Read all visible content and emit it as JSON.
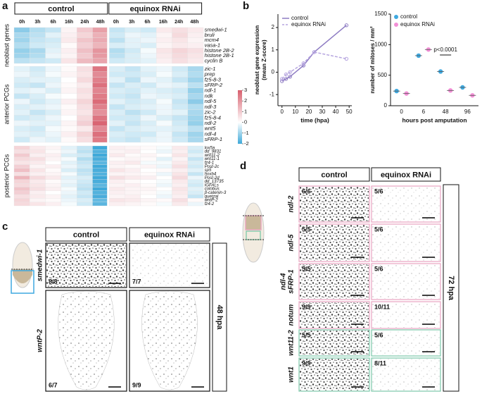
{
  "chart_data": [
    {
      "panel": "a",
      "type": "heatmap",
      "column_headers": [
        "control",
        "equinox RNAi"
      ],
      "timepoints": [
        "0h",
        "3h",
        "6h",
        "16h",
        "24h",
        "48h"
      ],
      "groups": [
        {
          "name": "neoblast genes",
          "color": "#9b8fd6",
          "rows": [
            "smedwi-1",
            "bruli",
            "mcm4",
            "vasa-1",
            "histone 2B-2",
            "histone 2B-1",
            "cyclin B"
          ],
          "values": [
            [
              -1.2,
              -0.8,
              -0.6,
              0.2,
              1.0,
              1.8,
              -0.6,
              -0.4,
              -0.5,
              0.4,
              0.6,
              0.4
            ],
            [
              -0.9,
              -0.7,
              -0.3,
              0.3,
              0.8,
              1.5,
              -0.5,
              -0.2,
              -0.3,
              0.2,
              0.7,
              0.3
            ],
            [
              -1.0,
              -0.6,
              -0.5,
              0.4,
              1.1,
              1.6,
              -0.7,
              -0.3,
              -0.2,
              0.3,
              0.5,
              0.2
            ],
            [
              -0.8,
              -0.5,
              -0.4,
              0.1,
              0.9,
              1.4,
              -0.4,
              -0.3,
              -0.4,
              0.2,
              0.4,
              0.3
            ],
            [
              -1.1,
              -0.9,
              -0.3,
              0.3,
              1.2,
              2.0,
              -0.8,
              -0.5,
              -0.1,
              0.5,
              0.8,
              0.6
            ],
            [
              -1.0,
              -0.8,
              -0.2,
              0.2,
              1.0,
              1.9,
              -0.7,
              -0.4,
              -0.2,
              0.4,
              0.7,
              0.5
            ],
            [
              -0.7,
              -0.6,
              -0.5,
              0.5,
              1.3,
              1.7,
              -0.5,
              -0.4,
              -0.3,
              0.3,
              0.6,
              0.4
            ]
          ]
        },
        {
          "name": "anterior PCGs",
          "color": "#e9a3b6",
          "rows": [
            "zic-1",
            "prep",
            "fz5-8-3",
            "sFRP-2",
            "ndl-1",
            "ndk",
            "ndl-5",
            "ndl-3",
            "zic-2",
            "fz5-8-4",
            "ndl-2",
            "wnt5",
            "ndl-4",
            "sFRP-1"
          ],
          "values": [
            [
              -0.3,
              -0.5,
              -0.2,
              0.1,
              0.6,
              2.6,
              -0.4,
              -0.6,
              -0.3,
              -0.2,
              -0.5,
              -0.9
            ],
            [
              -0.2,
              -0.4,
              -0.1,
              0.2,
              0.5,
              2.2,
              -0.5,
              -0.5,
              -0.4,
              -0.1,
              -0.4,
              -0.8
            ],
            [
              -0.4,
              -0.3,
              -0.3,
              0.0,
              0.7,
              2.4,
              -0.3,
              -0.7,
              -0.2,
              -0.3,
              -0.6,
              -1.0
            ],
            [
              -0.5,
              -0.6,
              -0.2,
              0.1,
              0.4,
              2.7,
              -0.6,
              -0.4,
              -0.5,
              -0.2,
              -0.3,
              -0.7
            ],
            [
              -0.3,
              -0.2,
              -0.4,
              0.2,
              0.6,
              2.3,
              -0.4,
              -0.5,
              -0.3,
              -0.4,
              -0.5,
              -1.1
            ],
            [
              -0.6,
              -0.4,
              -0.1,
              0.0,
              0.5,
              2.5,
              -0.5,
              -0.6,
              -0.2,
              -0.3,
              -0.4,
              -0.9
            ],
            [
              -0.2,
              -0.5,
              -0.3,
              0.3,
              0.8,
              2.8,
              -0.3,
              -0.5,
              -0.4,
              -0.1,
              -0.6,
              -1.2
            ],
            [
              -0.4,
              -0.3,
              -0.2,
              0.1,
              0.6,
              2.4,
              -0.6,
              -0.4,
              -0.3,
              -0.2,
              -0.5,
              -0.8
            ],
            [
              -0.3,
              -0.6,
              -0.4,
              0.2,
              0.5,
              2.1,
              -0.4,
              -0.7,
              -0.5,
              -0.2,
              -0.3,
              -0.9
            ],
            [
              -0.5,
              -0.4,
              -0.2,
              0.0,
              0.7,
              2.6,
              -0.5,
              -0.5,
              -0.2,
              -0.4,
              -0.6,
              -1.0
            ],
            [
              -0.2,
              -0.3,
              -0.3,
              0.2,
              0.9,
              2.9,
              -0.3,
              -0.6,
              -0.4,
              -0.1,
              -0.5,
              -1.1
            ],
            [
              -0.4,
              -0.5,
              -0.1,
              0.1,
              0.4,
              2.2,
              -0.6,
              -0.4,
              -0.3,
              -0.3,
              -0.4,
              -0.7
            ],
            [
              -0.3,
              -0.4,
              -0.2,
              0.3,
              0.8,
              2.7,
              -0.4,
              -0.5,
              -0.5,
              -0.2,
              -0.6,
              -1.0
            ],
            [
              -0.5,
              -0.2,
              -0.3,
              0.1,
              0.6,
              2.5,
              -0.5,
              -0.6,
              -0.3,
              -0.2,
              -0.5,
              -0.9
            ]
          ]
        },
        {
          "name": "posterior PCGs",
          "color": "#7cc9a9",
          "rows": [
            "lox5a",
            "dd_9831",
            "wnt11-2",
            "wnt11-1",
            "fz4-1",
            "Post-2c",
            "sp5",
            "hoxb4",
            "Post-2d",
            "dd_13735",
            "IGFALs",
            "colobus",
            "β-catenin-3",
            "quetzal",
            "wntP-2",
            "fz4-2"
          ],
          "values": [
            [
              0.8,
              0.4,
              0.2,
              -0.3,
              -0.6,
              -2.0,
              0.3,
              0.2,
              0.1,
              -0.1,
              0.4,
              -0.4
            ],
            [
              0.6,
              0.5,
              0.1,
              -0.2,
              -0.7,
              -1.8,
              0.2,
              0.3,
              0.0,
              -0.2,
              0.3,
              -0.5
            ],
            [
              1.0,
              0.3,
              0.3,
              -0.4,
              -0.5,
              -2.1,
              0.4,
              0.1,
              0.2,
              0.0,
              0.5,
              -0.3
            ],
            [
              0.7,
              0.6,
              0.2,
              -0.1,
              -0.8,
              -1.9,
              0.1,
              0.2,
              0.1,
              -0.3,
              0.2,
              -0.6
            ],
            [
              0.5,
              0.4,
              0.0,
              -0.3,
              -0.6,
              -1.7,
              0.3,
              0.4,
              -0.1,
              -0.1,
              0.4,
              -0.4
            ],
            [
              0.9,
              0.2,
              0.3,
              -0.2,
              -0.5,
              -2.0,
              0.2,
              0.1,
              0.2,
              -0.2,
              0.6,
              -0.5
            ],
            [
              1.2,
              0.5,
              0.1,
              -0.4,
              -0.7,
              -1.9,
              0.5,
              0.3,
              0.0,
              0.1,
              0.3,
              -0.3
            ],
            [
              0.6,
              0.3,
              0.2,
              -0.1,
              -0.6,
              -1.8,
              0.2,
              0.2,
              0.1,
              -0.2,
              0.5,
              -0.6
            ],
            [
              1.4,
              0.7,
              0.4,
              -0.3,
              -0.4,
              -2.0,
              0.6,
              0.4,
              0.3,
              0.0,
              0.7,
              -0.2
            ],
            [
              0.8,
              0.4,
              0.1,
              -0.2,
              -0.5,
              -1.9,
              0.3,
              0.1,
              0.0,
              -0.1,
              0.4,
              -0.4
            ],
            [
              0.7,
              0.5,
              0.2,
              -0.3,
              -0.6,
              -1.7,
              0.2,
              0.3,
              0.1,
              -0.2,
              0.3,
              -0.5
            ],
            [
              1.1,
              0.6,
              0.3,
              -0.1,
              -0.7,
              -2.0,
              0.4,
              0.2,
              0.2,
              0.0,
              0.5,
              -0.3
            ],
            [
              0.9,
              0.3,
              0.0,
              -0.2,
              -0.5,
              -1.8,
              0.3,
              0.2,
              0.1,
              -0.1,
              0.4,
              -0.4
            ],
            [
              0.6,
              0.4,
              0.2,
              -0.3,
              -0.6,
              -1.9,
              0.2,
              0.3,
              0.0,
              -0.2,
              0.3,
              -0.6
            ],
            [
              0.8,
              0.2,
              0.1,
              -0.2,
              -0.4,
              -1.6,
              0.5,
              0.4,
              0.2,
              0.1,
              0.6,
              0.1
            ],
            [
              0.7,
              0.5,
              0.3,
              -0.1,
              -0.5,
              -1.7,
              0.3,
              0.2,
              0.1,
              -0.1,
              0.4,
              -0.2
            ]
          ]
        }
      ],
      "colorbar": {
        "lim": [
          -2,
          3
        ],
        "ticks": [
          3,
          2,
          1,
          0,
          -1,
          -2
        ],
        "colors": [
          "#3fa9d9",
          "#ffffff",
          "#d8606e"
        ]
      }
    },
    {
      "panel": "b",
      "type": "line",
      "x": [
        0,
        3,
        6,
        16,
        24,
        48
      ],
      "series": [
        {
          "name": "control",
          "color": "#8e7cc3",
          "dash": false,
          "values": [
            -0.4,
            -0.3,
            -0.2,
            0.3,
            0.9,
            2.1
          ]
        },
        {
          "name": "equinox RNAi",
          "color": "#b7a6e0",
          "dash": true,
          "values": [
            -0.3,
            -0.1,
            0.0,
            0.4,
            0.9,
            0.6
          ]
        }
      ],
      "xlabel": "time (hpa)",
      "ylabel": [
        "neoblast gene expression",
        "(mean Z-score)"
      ],
      "xlim": [
        -3,
        52
      ],
      "xticks": [
        0,
        10,
        20,
        30,
        40,
        50
      ],
      "ylim": [
        -1.5,
        2.6
      ],
      "yticks": [
        -1,
        0,
        1,
        2
      ],
      "legend": "upper-left"
    },
    {
      "type": "dot",
      "categories": [
        "0",
        "6",
        "48",
        "96"
      ],
      "series": [
        {
          "name": "control",
          "color": "#3fa9e0",
          "values": [
            240,
            820,
            560,
            300
          ]
        },
        {
          "name": "equinox RNAi",
          "color": "#f28fd6",
          "values": [
            200,
            920,
            250,
            170
          ]
        }
      ],
      "xlabel": "hours post amputation",
      "ylabel": "number of mitoses / mm²",
      "ylim": [
        0,
        1500
      ],
      "yticks": [
        0,
        500,
        1000,
        1500
      ],
      "annotation": "p<0.0001",
      "legend": "upper-left"
    }
  ],
  "panel_c": {
    "label": "c",
    "column_headers": [
      "control",
      "equinox RNAi"
    ],
    "stage": "48 hpa",
    "rows": [
      {
        "gene": [
          "smedwi-1"
        ],
        "counts": [
          "8/8",
          "7/7"
        ]
      },
      {
        "gene": [
          "wntP-2"
        ],
        "counts": [
          "6/7",
          "9/9"
        ]
      }
    ]
  },
  "panel_d": {
    "label": "d",
    "column_headers": [
      "control",
      "equinox RNAi"
    ],
    "stage": "72 hpa",
    "rows": [
      {
        "gene": [
          "ndl-2"
        ],
        "counts": [
          "6/6",
          "5/6"
        ],
        "color": "#e9a3c0"
      },
      {
        "gene": [
          "ndl-5"
        ],
        "counts": [
          "5/5",
          "5/6"
        ],
        "color": "#e9a3c0"
      },
      {
        "gene": [
          "ndl-4",
          "sFRP-1"
        ],
        "counts": [
          "5/5",
          "5/6"
        ],
        "color": "#e9a3c0"
      },
      {
        "gene": [
          "notum"
        ],
        "counts": [
          "9/9",
          "10/11"
        ],
        "color": "#e9a3c0"
      },
      {
        "gene": [
          "wnt11-2"
        ],
        "counts": [
          "5/5",
          "5/6"
        ],
        "color": "#7cc9a9"
      },
      {
        "gene": [
          "wnt1"
        ],
        "counts": [
          "9/9",
          "8/11"
        ],
        "color": "#7cc9a9"
      }
    ]
  }
}
